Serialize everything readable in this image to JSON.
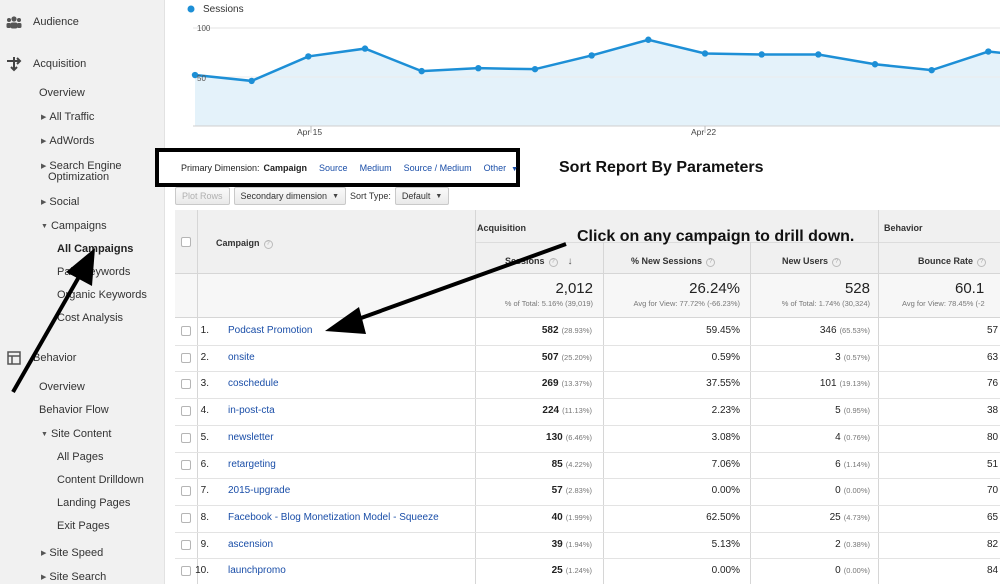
{
  "sidebar": {
    "audience": "Audience",
    "acquisition": "Acquisition",
    "overview": "Overview",
    "all_traffic": "All Traffic",
    "adwords": "AdWords",
    "seo_line1": "Search Engine",
    "seo_line2": "Optimization",
    "social": "Social",
    "campaigns": "Campaigns",
    "all_campaigns": "All Campaigns",
    "paid_keywords": "Paid Keywords",
    "organic_keywords": "Organic Keywords",
    "cost_analysis": "Cost Analysis",
    "behavior": "Behavior",
    "behavior_overview": "Overview",
    "behavior_flow": "Behavior Flow",
    "site_content": "Site Content",
    "all_pages": "All Pages",
    "content_drilldown": "Content Drilldown",
    "landing_pages": "Landing Pages",
    "exit_pages": "Exit Pages",
    "site_speed": "Site Speed",
    "site_search": "Site Search"
  },
  "chart": {
    "legend": "Sessions",
    "y_top": "100",
    "y_mid": "50",
    "x_label_1": "Apr 15",
    "x_label_2": "Apr 22",
    "line_color": "#1d8fd6",
    "fill_color": "#e4f2fa"
  },
  "chart_data": {
    "type": "area",
    "series": [
      {
        "name": "Sessions",
        "values": [
          52,
          46,
          71,
          79,
          56,
          59,
          58,
          72,
          88,
          74,
          73,
          73,
          63,
          57,
          76,
          70
        ]
      }
    ],
    "ylim": [
      0,
      100
    ],
    "ticks_y": [
      "100",
      "50"
    ],
    "ticks_x": [
      "Apr 15",
      "Apr 22"
    ],
    "grid": true,
    "legend": "top-left"
  },
  "primary_dimension": {
    "label": "Primary Dimension:",
    "current": "Campaign",
    "options": [
      "Source",
      "Medium",
      "Source / Medium",
      "Other"
    ]
  },
  "annotations": {
    "sort": "Sort Report By Parameters",
    "click": "Click on any campaign to drill down."
  },
  "toolbar": {
    "plot_rows": "Plot Rows",
    "secondary_dimension": "Secondary dimension",
    "sort_type_label": "Sort Type:",
    "sort_type_value": "Default"
  },
  "table": {
    "group_acquisition": "Acquisition",
    "group_behavior": "Behavior",
    "col_campaign": "Campaign",
    "col_sessions": "Sessions",
    "col_new_sessions": "% New Sessions",
    "col_new_users": "New Users",
    "col_bounce": "Bounce Rate",
    "totals": {
      "sessions": "2,012",
      "sessions_sub": "% of Total: 5.16% (39,019)",
      "new_sessions": "26.24%",
      "new_sessions_sub": "Avg for View: 77.72% (-66.23%)",
      "new_users": "528",
      "new_users_sub": "% of Total: 1.74% (30,324)",
      "bounce": "60.1",
      "bounce_sub": "Avg for View: 78.45% (-2"
    },
    "rows": [
      {
        "num": "1.",
        "campaign": "Podcast Promotion",
        "sessions": "582",
        "sessions_pct": "(28.93%)",
        "new_sessions": "59.45%",
        "new_users": "346",
        "new_users_pct": "(65.53%)",
        "bounce": "57"
      },
      {
        "num": "2.",
        "campaign": "onsite",
        "sessions": "507",
        "sessions_pct": "(25.20%)",
        "new_sessions": "0.59%",
        "new_users": "3",
        "new_users_pct": "(0.57%)",
        "bounce": "63"
      },
      {
        "num": "3.",
        "campaign": "coschedule",
        "sessions": "269",
        "sessions_pct": "(13.37%)",
        "new_sessions": "37.55%",
        "new_users": "101",
        "new_users_pct": "(19.13%)",
        "bounce": "76"
      },
      {
        "num": "4.",
        "campaign": "in-post-cta",
        "sessions": "224",
        "sessions_pct": "(11.13%)",
        "new_sessions": "2.23%",
        "new_users": "5",
        "new_users_pct": "(0.95%)",
        "bounce": "38"
      },
      {
        "num": "5.",
        "campaign": "newsletter",
        "sessions": "130",
        "sessions_pct": "(6.46%)",
        "new_sessions": "3.08%",
        "new_users": "4",
        "new_users_pct": "(0.76%)",
        "bounce": "80"
      },
      {
        "num": "6.",
        "campaign": "retargeting",
        "sessions": "85",
        "sessions_pct": "(4.22%)",
        "new_sessions": "7.06%",
        "new_users": "6",
        "new_users_pct": "(1.14%)",
        "bounce": "51"
      },
      {
        "num": "7.",
        "campaign": "2015-upgrade",
        "sessions": "57",
        "sessions_pct": "(2.83%)",
        "new_sessions": "0.00%",
        "new_users": "0",
        "new_users_pct": "(0.00%)",
        "bounce": "70"
      },
      {
        "num": "8.",
        "campaign": "Facebook - Blog Monetization Model - Squeeze",
        "sessions": "40",
        "sessions_pct": "(1.99%)",
        "new_sessions": "62.50%",
        "new_users": "25",
        "new_users_pct": "(4.73%)",
        "bounce": "65"
      },
      {
        "num": "9.",
        "campaign": "ascension",
        "sessions": "39",
        "sessions_pct": "(1.94%)",
        "new_sessions": "5.13%",
        "new_users": "2",
        "new_users_pct": "(0.38%)",
        "bounce": "82"
      },
      {
        "num": "10.",
        "campaign": "launchpromo",
        "sessions": "25",
        "sessions_pct": "(1.24%)",
        "new_sessions": "0.00%",
        "new_users": "0",
        "new_users_pct": "(0.00%)",
        "bounce": "84"
      }
    ]
  }
}
